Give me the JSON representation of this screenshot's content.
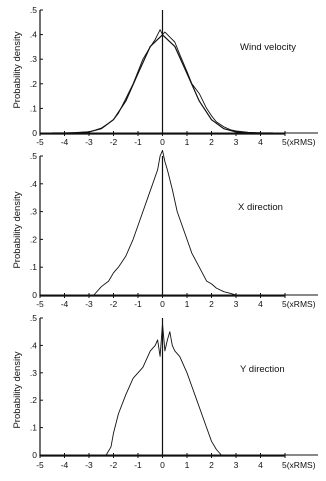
{
  "chart_data": [
    {
      "type": "line",
      "annotation": "Wind velocity",
      "ylabel": "Probability density",
      "xlim": [
        -5,
        5
      ],
      "ylim": [
        0,
        0.5
      ],
      "x_ticks": [
        "-5",
        "-4",
        "-3",
        "-2",
        "-1",
        "0",
        "1",
        "2",
        "3",
        "4",
        "5(xRMS)"
      ],
      "y_ticks": [
        ".5",
        ".4",
        ".3",
        ".2",
        ".1",
        "0"
      ],
      "series": [
        {
          "x": [
            -4.5,
            -4.0,
            -3.5,
            -3.0,
            -2.8,
            -2.5,
            -2.2,
            -2.0,
            -1.8,
            -1.5,
            -1.2,
            -1.0,
            -0.8,
            -0.5,
            -0.3,
            -0.1,
            0.0,
            0.1,
            0.3,
            0.5,
            0.7,
            1.0,
            1.2,
            1.5,
            1.8,
            2.0,
            2.2,
            2.5,
            2.8,
            3.0,
            3.5,
            4.0,
            4.5
          ],
          "y": [
            0.0,
            0.0,
            0.002,
            0.005,
            0.01,
            0.02,
            0.04,
            0.055,
            0.08,
            0.14,
            0.2,
            0.25,
            0.3,
            0.35,
            0.38,
            0.42,
            0.4,
            0.41,
            0.39,
            0.37,
            0.32,
            0.25,
            0.2,
            0.16,
            0.1,
            0.07,
            0.045,
            0.025,
            0.012,
            0.008,
            0.003,
            0.001,
            0.0
          ]
        },
        {
          "x": [
            -4.5,
            -4.0,
            -3.5,
            -3.0,
            -2.5,
            -2.0,
            -1.5,
            -1.0,
            -0.5,
            0.0,
            0.5,
            1.0,
            1.5,
            2.0,
            2.5,
            3.0,
            3.5,
            4.0,
            4.5
          ],
          "y": [
            0.0,
            0.0001,
            0.0009,
            0.0044,
            0.0175,
            0.054,
            0.1295,
            0.242,
            0.352,
            0.399,
            0.352,
            0.242,
            0.1295,
            0.054,
            0.0175,
            0.0044,
            0.0009,
            0.0001,
            0.0
          ]
        }
      ]
    },
    {
      "type": "line",
      "annotation": "X direction",
      "ylabel": "Probability density",
      "xlim": [
        -5,
        5
      ],
      "ylim": [
        0,
        0.5
      ],
      "x_ticks": [
        "-5",
        "-4",
        "-3",
        "-2",
        "-1",
        "0",
        "1",
        "2",
        "3",
        "4",
        "5(xRMS)"
      ],
      "y_ticks": [
        ".5",
        ".4",
        ".3",
        ".2",
        ".1",
        "0"
      ],
      "series": [
        {
          "x": [
            -2.8,
            -2.5,
            -2.2,
            -2.0,
            -1.8,
            -1.5,
            -1.2,
            -1.0,
            -0.8,
            -0.6,
            -0.4,
            -0.2,
            -0.1,
            0.0,
            0.1,
            0.2,
            0.4,
            0.6,
            0.8,
            1.0,
            1.2,
            1.5,
            1.8,
            2.0,
            2.2,
            2.5,
            2.8,
            3.0
          ],
          "y": [
            0.0,
            0.03,
            0.05,
            0.08,
            0.1,
            0.14,
            0.2,
            0.25,
            0.3,
            0.35,
            0.4,
            0.45,
            0.5,
            0.52,
            0.48,
            0.45,
            0.38,
            0.3,
            0.25,
            0.2,
            0.15,
            0.1,
            0.05,
            0.04,
            0.025,
            0.012,
            0.005,
            0.0
          ]
        }
      ]
    },
    {
      "type": "line",
      "annotation": "Y direction",
      "ylabel": "Probability density",
      "xlim": [
        -5,
        5
      ],
      "ylim": [
        0,
        0.5
      ],
      "x_ticks": [
        "-5",
        "-4",
        "-3",
        "-2",
        "-1",
        "0",
        "1",
        "2",
        "3",
        "4",
        "5(xRMS)"
      ],
      "y_ticks": [
        ".5",
        ".4",
        ".3",
        ".2",
        ".1",
        "0"
      ],
      "series": [
        {
          "x": [
            -2.3,
            -2.1,
            -2.0,
            -1.8,
            -1.5,
            -1.2,
            -1.0,
            -0.8,
            -0.5,
            -0.3,
            -0.2,
            -0.1,
            0.0,
            0.1,
            0.2,
            0.3,
            0.4,
            0.5,
            0.7,
            1.0,
            1.2,
            1.4,
            1.6,
            1.8,
            2.0,
            2.2,
            2.4
          ],
          "y": [
            0.0,
            0.03,
            0.08,
            0.15,
            0.22,
            0.28,
            0.3,
            0.32,
            0.38,
            0.4,
            0.42,
            0.36,
            0.48,
            0.38,
            0.42,
            0.45,
            0.4,
            0.38,
            0.36,
            0.3,
            0.25,
            0.2,
            0.15,
            0.1,
            0.05,
            0.02,
            0.0
          ]
        }
      ]
    }
  ]
}
